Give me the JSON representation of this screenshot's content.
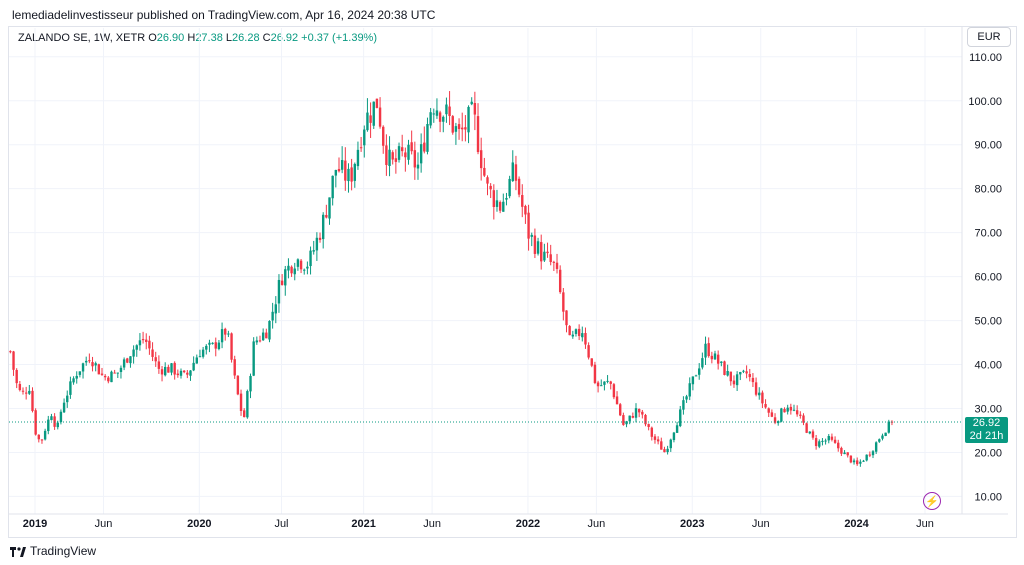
{
  "header": {
    "published": "lemediadelinvestisseur published on TradingView.com, Apr 16, 2024 20:38 UTC"
  },
  "legend": {
    "symbol": "ZALANDO SE, 1W, XETR",
    "o_label": "O",
    "o_value": "26.90",
    "h_label": "H",
    "h_value": "27.38",
    "l_label": "L",
    "l_value": "26.28",
    "c_label": "C",
    "c_value": "26.92",
    "change": "+0.37 (+1.39%)"
  },
  "currency_button": "EUR",
  "last_price": {
    "value": "26.92",
    "countdown": "2d 21h"
  },
  "brand": "TradingView",
  "colors": {
    "up": "#089981",
    "down": "#f23645",
    "grid": "#f0f3fa",
    "text": "#131722",
    "accent": "#9c27b0"
  },
  "chart_data": {
    "type": "candlestick",
    "title": "ZALANDO SE, 1W, XETR",
    "ylabel": "EUR",
    "ylim": [
      6,
      112
    ],
    "y_ticks": [
      "110.00",
      "100.00",
      "90.00",
      "80.00",
      "70.00",
      "60.00",
      "50.00",
      "40.00",
      "30.00",
      "20.00",
      "10.00"
    ],
    "y_tick_values": [
      110,
      100,
      90,
      80,
      70,
      60,
      50,
      40,
      30,
      20,
      10
    ],
    "x_ticks": [
      "2019",
      "Jun",
      "2020",
      "Jul",
      "2021",
      "Jun",
      "2022",
      "Jun",
      "2023",
      "Jun",
      "2024",
      "Jun"
    ],
    "x_tick_months": [
      0,
      5,
      12,
      18,
      24,
      29,
      36,
      41,
      48,
      53,
      60,
      65
    ],
    "x_range_months": [
      -1.9,
      67.7
    ],
    "last_close": 26.92,
    "path_monthly_close": [
      {
        "m": -1.8,
        "v": 43
      },
      {
        "m": -1.4,
        "v": 36
      },
      {
        "m": -1,
        "v": 33
      },
      {
        "m": -0.4,
        "v": 35
      },
      {
        "m": 0,
        "v": 25
      },
      {
        "m": 0.4,
        "v": 22
      },
      {
        "m": 0.8,
        "v": 26
      },
      {
        "m": 1.2,
        "v": 29
      },
      {
        "m": 1.6,
        "v": 25
      },
      {
        "m": 2,
        "v": 31
      },
      {
        "m": 3,
        "v": 38
      },
      {
        "m": 4,
        "v": 42
      },
      {
        "m": 5,
        "v": 37
      },
      {
        "m": 6,
        "v": 38
      },
      {
        "m": 7,
        "v": 43
      },
      {
        "m": 8,
        "v": 46
      },
      {
        "m": 9,
        "v": 39
      },
      {
        "m": 10,
        "v": 39
      },
      {
        "m": 11,
        "v": 37
      },
      {
        "m": 12,
        "v": 43
      },
      {
        "m": 13,
        "v": 44
      },
      {
        "m": 14,
        "v": 48
      },
      {
        "m": 14.5,
        "v": 38
      },
      {
        "m": 15,
        "v": 30
      },
      {
        "m": 15.3,
        "v": 28
      },
      {
        "m": 16,
        "v": 45
      },
      {
        "m": 17,
        "v": 48
      },
      {
        "m": 18,
        "v": 60
      },
      {
        "m": 19,
        "v": 64
      },
      {
        "m": 20,
        "v": 63
      },
      {
        "m": 21,
        "v": 72
      },
      {
        "m": 22,
        "v": 85
      },
      {
        "m": 23,
        "v": 82
      },
      {
        "m": 24,
        "v": 95
      },
      {
        "m": 25,
        "v": 100
      },
      {
        "m": 25.5,
        "v": 90
      },
      {
        "m": 26,
        "v": 85
      },
      {
        "m": 27,
        "v": 88
      },
      {
        "m": 28,
        "v": 85
      },
      {
        "m": 29,
        "v": 100
      },
      {
        "m": 30,
        "v": 97
      },
      {
        "m": 31,
        "v": 92
      },
      {
        "m": 32,
        "v": 97
      },
      {
        "m": 33,
        "v": 80
      },
      {
        "m": 34,
        "v": 76
      },
      {
        "m": 35,
        "v": 84
      },
      {
        "m": 36,
        "v": 70
      },
      {
        "m": 37,
        "v": 65
      },
      {
        "m": 38,
        "v": 62
      },
      {
        "m": 39,
        "v": 45
      },
      {
        "m": 40,
        "v": 48
      },
      {
        "m": 41,
        "v": 35
      },
      {
        "m": 42,
        "v": 36
      },
      {
        "m": 43,
        "v": 26
      },
      {
        "m": 44,
        "v": 30
      },
      {
        "m": 45,
        "v": 24
      },
      {
        "m": 46,
        "v": 20
      },
      {
        "m": 47,
        "v": 28
      },
      {
        "m": 48,
        "v": 36
      },
      {
        "m": 49,
        "v": 44
      },
      {
        "m": 50,
        "v": 40
      },
      {
        "m": 51,
        "v": 36
      },
      {
        "m": 52,
        "v": 38
      },
      {
        "m": 53,
        "v": 32
      },
      {
        "m": 54,
        "v": 27
      },
      {
        "m": 55,
        "v": 31
      },
      {
        "m": 56,
        "v": 27
      },
      {
        "m": 57,
        "v": 22
      },
      {
        "m": 58,
        "v": 23
      },
      {
        "m": 59,
        "v": 20
      },
      {
        "m": 60,
        "v": 17
      },
      {
        "m": 61,
        "v": 20
      },
      {
        "m": 62,
        "v": 25
      },
      {
        "m": 62.6,
        "v": 26.92
      }
    ]
  }
}
